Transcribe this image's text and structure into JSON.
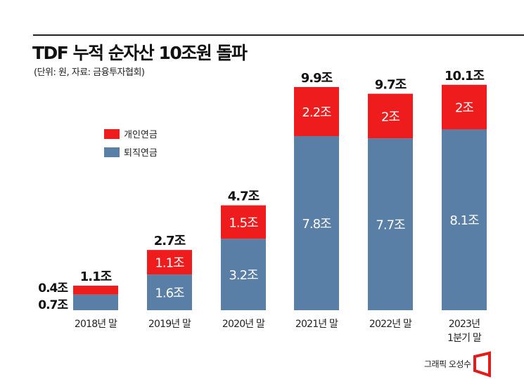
{
  "chart_data": {
    "type": "bar",
    "stacked": true,
    "title": "TDF 누적 순자산 10조원 돌파",
    "subtitle": "(단위: 원, 자료: 금융투자협회)",
    "categories": [
      "2018년 말",
      "2019년 말",
      "2020년 말",
      "2021년 말",
      "2022년 말",
      "2023년 1분기 말"
    ],
    "series": [
      {
        "name": "퇴직연금",
        "color": "#5a7fa6",
        "values": [
          0.7,
          1.6,
          3.2,
          7.8,
          7.7,
          8.1
        ],
        "labels": [
          "0.7조",
          "1.6조",
          "3.2조",
          "7.8조",
          "7.7조",
          "8.1조"
        ]
      },
      {
        "name": "개인연금",
        "color": "#ee1c1c",
        "values": [
          0.4,
          1.1,
          1.5,
          2.2,
          2,
          2
        ],
        "labels": [
          "0.4조",
          "1.1조",
          "1.5조",
          "2.2조",
          "2조",
          "2조"
        ]
      }
    ],
    "totals": [
      1.1,
      2.7,
      4.7,
      9.9,
      9.7,
      10.1
    ],
    "total_labels": [
      "1.1조",
      "2.7조",
      "4.7조",
      "9.9조",
      "9.7조",
      "10.1조"
    ],
    "legend_position": "upper-left",
    "grid": false
  },
  "credit": "그래픽 오성수"
}
